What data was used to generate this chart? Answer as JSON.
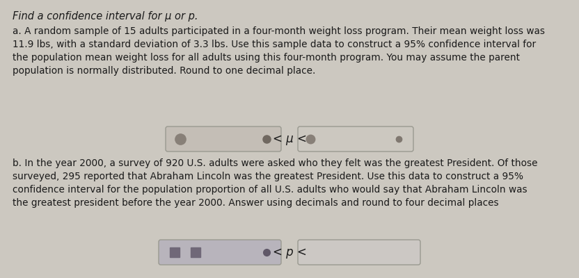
{
  "title": "Find a confidence interval for μ or p.",
  "bg_color": "#ccc8c0",
  "text_color": "#1a1a1a",
  "part_a_text": "a. A random sample of 15 adults participated in a four-month weight loss program. Their mean weight loss was\n11.9 lbs, with a standard deviation of 3.3 lbs. Use this sample data to construct a 95% confidence interval for\nthe population mean weight loss for all adults using this four-month program. You may assume the parent\npopulation is normally distributed. Round to one decimal place.",
  "part_b_text": "b. In the year 2000, a survey of 920 U.S. adults were asked who they felt was the greatest President. Of those\nsurveyed, 295 reported that Abraham Lincoln was the greatest President. Use this data to construct a 95%\nconfidence interval for the population proportion of all U.S. adults who would say that Abraham Lincoln was\nthe greatest president before the year 2000. Answer using decimals and round to four decimal places",
  "box_border_color": "#999990",
  "symbol_a": "< μ <",
  "symbol_b": "< p <",
  "font_size_title": 10.5,
  "font_size_body": 9.8,
  "fig_width": 8.32,
  "fig_height": 4.0,
  "dpi": 100
}
